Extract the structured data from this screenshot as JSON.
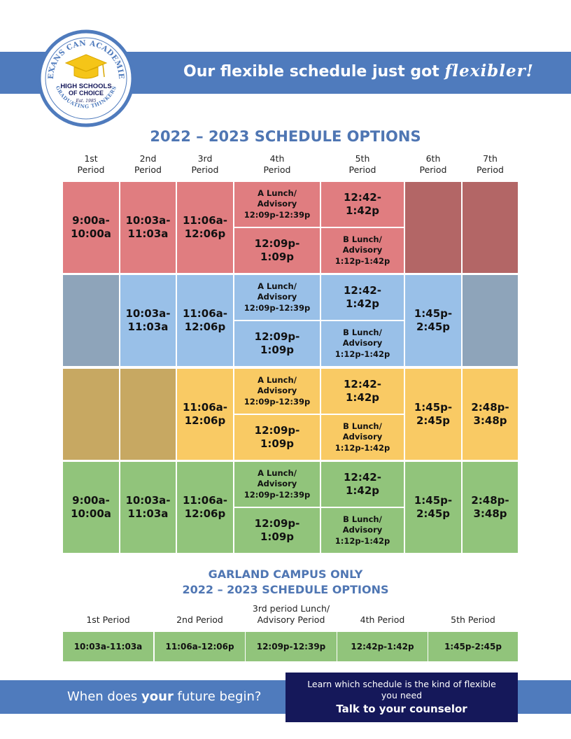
{
  "logo": {
    "ring_text_top": "TEXANS CAN ACADEMIES",
    "ring_text_bottom": "GRADUATING THINKERS",
    "center_line1": "HIGH SCHOOLS",
    "center_line2": "OF CHOICE",
    "established": "Est. 1985"
  },
  "header": {
    "headline_main": "Our flexible schedule just got ",
    "headline_script": "flexibler!"
  },
  "schedule": {
    "title": "2022 – 2023 SCHEDULE OPTIONS",
    "columns": [
      {
        "line1": "1st",
        "line2": "Period"
      },
      {
        "line1": "2nd",
        "line2": "Period"
      },
      {
        "line1": "3rd",
        "line2": "Period"
      },
      {
        "line1": "4th",
        "line2": "Period"
      },
      {
        "line1": "5th",
        "line2": "Period"
      },
      {
        "line1": "6th",
        "line2": "Period"
      },
      {
        "line1": "7th",
        "line2": "Period"
      }
    ],
    "rows": [
      {
        "p1": "9:00a-\n10:00a",
        "p2": "10:03a-\n11:03a",
        "p3": "11:06a-\n12:06p",
        "p4_top": "A Lunch/\nAdvisory\n12:09p-12:39p",
        "p4_bottom": "12:09p-\n1:09p",
        "p5_top": "12:42-\n1:42p",
        "p5_bottom": "B Lunch/\nAdvisory\n1:12p-1:42p",
        "p6": "",
        "p7": ""
      },
      {
        "p1": "",
        "p2": "10:03a-\n11:03a",
        "p3": "11:06a-\n12:06p",
        "p4_top": "A Lunch/\nAdvisory\n12:09p-12:39p",
        "p4_bottom": "12:09p-\n1:09p",
        "p5_top": "12:42-\n1:42p",
        "p5_bottom": "B Lunch/\nAdvisory\n1:12p-1:42p",
        "p6": "1:45p-\n2:45p",
        "p7": ""
      },
      {
        "p1": "",
        "p2": "",
        "p3": "11:06a-\n12:06p",
        "p4_top": "A Lunch/\nAdvisory\n12:09p-12:39p",
        "p4_bottom": "12:09p-\n1:09p",
        "p5_top": "12:42-\n1:42p",
        "p5_bottom": "B Lunch/\nAdvisory\n1:12p-1:42p",
        "p6": "1:45p-\n2:45p",
        "p7": "2:48p-\n3:48p"
      },
      {
        "p1": "9:00a-\n10:00a",
        "p2": "10:03a-\n11:03a",
        "p3": "11:06a-\n12:06p",
        "p4_top": "A Lunch/\nAdvisory\n12:09p-12:39p",
        "p4_bottom": "12:09p-\n1:09p",
        "p5_top": "12:42-\n1:42p",
        "p5_bottom": "B Lunch/\nAdvisory\n1:12p-1:42p",
        "p6": "1:45p-\n2:45p",
        "p7": "2:48p-\n3:48p"
      }
    ],
    "colors": {
      "red": "#e07d80",
      "red_muted": "#b36666",
      "blue": "#99c0e8",
      "blue_muted": "#8ea4ba",
      "yellow": "#f9ca64",
      "yellow_muted": "#c7a862",
      "green": "#91c47b"
    }
  },
  "garland": {
    "title_line1": "GARLAND CAMPUS ONLY",
    "title_line2": "2022 – 2023 SCHEDULE OPTIONS",
    "headers": [
      "1st Period",
      "2nd Period",
      "3rd period Lunch/\nAdvisory Period",
      "4th Period",
      "5th Period"
    ],
    "times": [
      "10:03a-11:03a",
      "11:06a-12:06p",
      "12:09p-12:39p",
      "12:42p-1:42p",
      "1:45p-2:45p"
    ]
  },
  "footer": {
    "tagline_pre": "When does ",
    "tagline_bold": "your",
    "tagline_post": " future begin?",
    "cta_line": "Learn which schedule is the kind of flexible\nyou need",
    "cta_strong": "Talk to your counselor"
  },
  "brand_colors": {
    "band": "#4f7bbd",
    "title": "#4f76b3",
    "cta": "#15185a"
  }
}
